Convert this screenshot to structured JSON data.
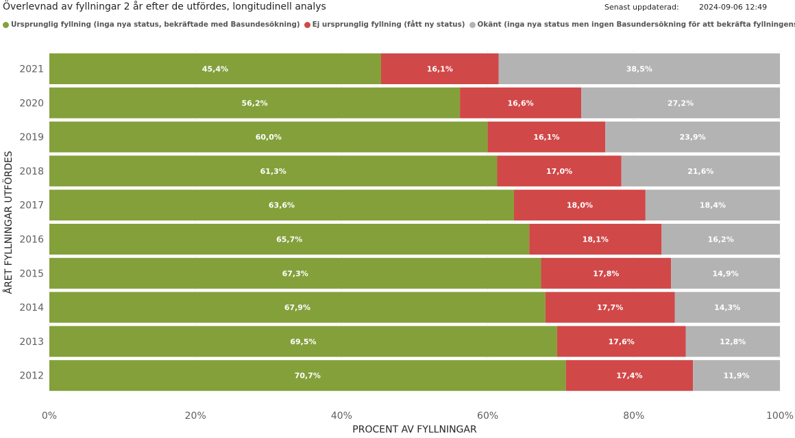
{
  "header": {
    "title": "Överlevnad av fyllningar 2 år efter de utfördes, longitudinell analys",
    "updated_label": "Senast uppdaterad:",
    "updated_value": "2024-09-06 12:49"
  },
  "legend": [
    {
      "label": "Ursprunglig fyllning (inga nya status, bekräftade med Basundesökning)",
      "color": "#84A03B"
    },
    {
      "label": "Ej ursprunglig fyllning (fått ny status)",
      "color": "#D14848"
    },
    {
      "label": "Okänt (inga nya status men ingen Basundersökning för att bekräfta fyllningens status)",
      "color": "#B3B3B3"
    }
  ],
  "chart_data": {
    "type": "bar",
    "orientation": "horizontal",
    "stacked": true,
    "xlabel": "PROCENT AV FYLLNINGAR",
    "ylabel": "ÅRET FYLLNINGAR UTFÖRDES",
    "xlim": [
      0,
      100
    ],
    "x_ticks": [
      "0%",
      "20%",
      "40%",
      "60%",
      "80%",
      "100%"
    ],
    "grid": true,
    "legend_position": "top-left",
    "categories": [
      "2021",
      "2020",
      "2019",
      "2018",
      "2017",
      "2016",
      "2015",
      "2014",
      "2013",
      "2012"
    ],
    "series": [
      {
        "name": "Ursprunglig fyllning (inga nya status, bekräftade med Basundesökning)",
        "color": "#84A03B",
        "values": [
          45.4,
          56.2,
          60.0,
          61.3,
          63.6,
          65.7,
          67.3,
          67.9,
          69.5,
          70.7
        ],
        "labels": [
          "45,4%",
          "56,2%",
          "60,0%",
          "61,3%",
          "63,6%",
          "65,7%",
          "67,3%",
          "67,9%",
          "69,5%",
          "70,7%"
        ]
      },
      {
        "name": "Ej ursprunglig fyllning (fått ny status)",
        "color": "#D14848",
        "values": [
          16.1,
          16.6,
          16.1,
          17.0,
          18.0,
          18.1,
          17.8,
          17.7,
          17.6,
          17.4
        ],
        "labels": [
          "16,1%",
          "16,6%",
          "16,1%",
          "17,0%",
          "18,0%",
          "18,1%",
          "17,8%",
          "17,7%",
          "17,6%",
          "17,4%"
        ]
      },
      {
        "name": "Okänt (inga nya status men ingen Basundersökning för att bekräfta fyllningens status)",
        "color": "#B3B3B3",
        "values": [
          38.5,
          27.2,
          23.9,
          21.6,
          18.4,
          16.2,
          14.9,
          14.3,
          12.8,
          11.9
        ],
        "labels": [
          "38,5%",
          "27,2%",
          "23,9%",
          "21,6%",
          "18,4%",
          "16,2%",
          "14,9%",
          "14,3%",
          "12,8%",
          "11,9%"
        ]
      }
    ]
  }
}
